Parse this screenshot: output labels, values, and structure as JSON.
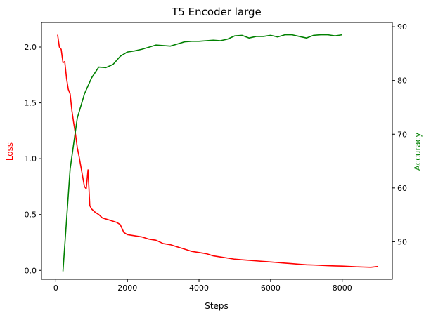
{
  "chart_data": {
    "type": "line",
    "title": "T5 Encoder large",
    "xlabel": "Steps",
    "ylabel_left": "Loss",
    "ylabel_right": "Accuracy",
    "xlim": [
      -400,
      9400
    ],
    "ylim_left": [
      -0.08,
      2.22
    ],
    "ylim_right": [
      43.0,
      90.8
    ],
    "xticks": [
      0,
      2000,
      4000,
      6000,
      8000
    ],
    "yticks_left": [
      0.0,
      0.5,
      1.0,
      1.5,
      2.0
    ],
    "yticks_right": [
      50,
      60,
      70,
      80,
      90
    ],
    "xtick_labels": [
      "0",
      "2000",
      "4000",
      "6000",
      "8000"
    ],
    "ytick_labels_left": [
      "0.0",
      "0.5",
      "1.0",
      "1.5",
      "2.0"
    ],
    "ytick_labels_right": [
      "50",
      "60",
      "70",
      "80",
      "90"
    ],
    "grid": false,
    "legend": "none",
    "series": [
      {
        "axis": "left",
        "color": "#ff0000",
        "x": [
          50,
          100,
          150,
          200,
          250,
          300,
          350,
          400,
          450,
          500,
          550,
          600,
          650,
          700,
          750,
          800,
          850,
          900,
          950,
          1000,
          1100,
          1200,
          1300,
          1400,
          1500,
          1600,
          1700,
          1800,
          1900,
          2000,
          2200,
          2400,
          2600,
          2800,
          3000,
          3200,
          3400,
          3600,
          3800,
          4000,
          4200,
          4400,
          4600,
          4800,
          5000,
          5200,
          5400,
          5600,
          5800,
          6000,
          6200,
          6400,
          6600,
          6800,
          7000,
          7200,
          7400,
          7600,
          7800,
          8000,
          8200,
          8400,
          8600,
          8800,
          9000
        ],
        "values": [
          2.11,
          2.0,
          1.98,
          1.86,
          1.87,
          1.72,
          1.62,
          1.58,
          1.43,
          1.32,
          1.22,
          1.1,
          1.02,
          0.93,
          0.84,
          0.75,
          0.73,
          0.9,
          0.58,
          0.55,
          0.52,
          0.5,
          0.47,
          0.46,
          0.45,
          0.44,
          0.43,
          0.41,
          0.34,
          0.32,
          0.31,
          0.3,
          0.28,
          0.27,
          0.24,
          0.23,
          0.21,
          0.19,
          0.17,
          0.16,
          0.15,
          0.13,
          0.12,
          0.11,
          0.1,
          0.095,
          0.09,
          0.085,
          0.08,
          0.075,
          0.07,
          0.065,
          0.06,
          0.055,
          0.05,
          0.048,
          0.045,
          0.042,
          0.04,
          0.038,
          0.035,
          0.032,
          0.03,
          0.028,
          0.035
        ]
      },
      {
        "axis": "right",
        "color": "#008000",
        "x": [
          200,
          400,
          600,
          800,
          1000,
          1200,
          1400,
          1600,
          1800,
          2000,
          2200,
          2400,
          2600,
          2800,
          3000,
          3200,
          3400,
          3600,
          3800,
          4000,
          4200,
          4400,
          4600,
          4800,
          5000,
          5200,
          5400,
          5600,
          5800,
          6000,
          6200,
          6400,
          6600,
          6800,
          7000,
          7200,
          7400,
          7600,
          7800,
          8000
        ],
        "values": [
          44.5,
          63.5,
          73.0,
          77.5,
          80.5,
          82.5,
          82.4,
          83.0,
          84.5,
          85.3,
          85.5,
          85.8,
          86.2,
          86.6,
          86.5,
          86.4,
          86.8,
          87.2,
          87.3,
          87.3,
          87.4,
          87.5,
          87.4,
          87.7,
          88.3,
          88.4,
          87.9,
          88.2,
          88.2,
          88.4,
          88.1,
          88.5,
          88.5,
          88.2,
          87.9,
          88.4,
          88.5,
          88.5,
          88.3,
          88.5
        ]
      }
    ]
  },
  "colors": {
    "loss": "#ff0000",
    "accuracy": "#008000",
    "axes": "#000000"
  }
}
